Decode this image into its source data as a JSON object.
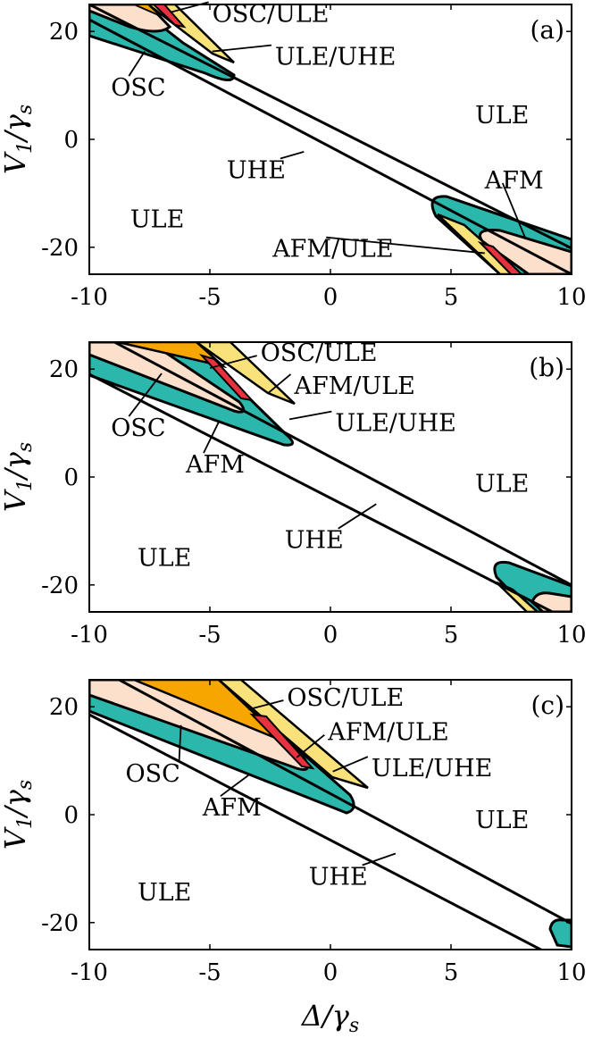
{
  "colors": {
    "ULE": "#ffffff",
    "UHE": "#ffffff",
    "AFM": "#2cb7ad",
    "OSC": "#fde0cc",
    "OSC/ULE": "#f7a600",
    "AFM/ULE": "#f9e27a",
    "ULE/UHE": "#e8313f",
    "outline": "#000000"
  },
  "chart_data": [
    {
      "type": "heatmap",
      "panel": "(a)",
      "xlabel": "",
      "ylabel": "V_1/γ_s",
      "xlim": [
        -10,
        10
      ],
      "ylim": [
        -25,
        25
      ],
      "xticks": [
        -10,
        -5,
        0,
        5,
        10
      ],
      "yticks": [
        -20,
        0,
        20
      ],
      "x_tick_labels": [
        "-10",
        "-5",
        "0",
        "5",
        "10"
      ],
      "y_tick_labels": [
        "-20",
        "0",
        "20"
      ],
      "regions": [
        "ULE",
        "UHE",
        "AFM",
        "OSC",
        "OSC/ULE",
        "AFM/ULE",
        "ULE/UHE"
      ],
      "uhe_band": {
        "upper_line": [
          [
            -10,
            25
          ],
          [
            10,
            -20
          ]
        ],
        "lower_line": [
          [
            -10,
            22
          ],
          [
            10,
            -25
          ]
        ]
      },
      "annotations": [
        {
          "text": "OSC/ULE",
          "x": -4.9,
          "y": 21.8,
          "arrow_to": [
            -6.6,
            23.6
          ]
        },
        {
          "text": "ULE/UHE",
          "x": -2.3,
          "y": 13.8,
          "arrow_to": [
            -4.9,
            16.3
          ]
        },
        {
          "text": "OSC",
          "x": -9.1,
          "y": 8.1,
          "arrow_to": [
            -7.7,
            16.3
          ]
        },
        {
          "text": "UHE",
          "x": -4.3,
          "y": -7.2,
          "arrow_to": [
            -1.1,
            -2.3
          ]
        },
        {
          "text": "ULE",
          "x": -8.3,
          "y": -16.3,
          "arrow_to": null
        },
        {
          "text": "ULE",
          "x": 6.0,
          "y": 3.0,
          "arrow_to": null
        },
        {
          "text": "AFM",
          "x": 6.4,
          "y": -9.1,
          "arrow_to": [
            8.1,
            -18.5
          ]
        },
        {
          "text": "AFM/ULE",
          "x": -2.4,
          "y": -21.8,
          "arrow_to": [
            6.4,
            -21.1
          ]
        }
      ]
    },
    {
      "type": "heatmap",
      "panel": "(b)",
      "xlabel": "",
      "ylabel": "V_1/γ_s",
      "xlim": [
        -10,
        10
      ],
      "ylim": [
        -25,
        25
      ],
      "xticks": [
        -10,
        -5,
        0,
        5,
        10
      ],
      "yticks": [
        -20,
        0,
        20
      ],
      "x_tick_labels": [
        "-10",
        "-5",
        "0",
        "5",
        "10"
      ],
      "y_tick_labels": [
        "-20",
        "0",
        "20"
      ],
      "regions": [
        "ULE",
        "UHE",
        "AFM",
        "OSC",
        "OSC/ULE",
        "AFM/ULE",
        "ULE/UHE"
      ],
      "uhe_band": {
        "upper_line": [
          [
            -10,
            27
          ],
          [
            10,
            -19
          ]
        ],
        "lower_line": [
          [
            -10,
            19.5
          ],
          [
            10,
            -26
          ]
        ]
      },
      "annotations": [
        {
          "text": "OSC/ULE",
          "x": -2.9,
          "y": 21.5,
          "arrow_to": [
            -5.0,
            20.2
          ]
        },
        {
          "text": "AFM/ULE",
          "x": -1.5,
          "y": 15.4,
          "arrow_to": [
            -2.6,
            15.5
          ]
        },
        {
          "text": "ULE/UHE",
          "x": 0.2,
          "y": 8.5,
          "arrow_to": [
            -1.7,
            10.7
          ]
        },
        {
          "text": "OSC",
          "x": -9.1,
          "y": 7.6,
          "arrow_to": [
            -7.0,
            19.2
          ]
        },
        {
          "text": "AFM",
          "x": -6.0,
          "y": 0.8,
          "arrow_to": [
            -4.6,
            10.5
          ]
        },
        {
          "text": "UHE",
          "x": -1.9,
          "y": -13.2,
          "arrow_to": [
            1.9,
            -5.0
          ]
        },
        {
          "text": "ULE",
          "x": -8.0,
          "y": -16.5,
          "arrow_to": null
        },
        {
          "text": "ULE",
          "x": 6.0,
          "y": -2.7,
          "arrow_to": null
        }
      ]
    },
    {
      "type": "heatmap",
      "panel": "(c)",
      "xlabel": "Δ/γ_s",
      "ylabel": "V_1/γ_s",
      "xlim": [
        -10,
        10
      ],
      "ylim": [
        -25,
        25
      ],
      "xticks": [
        -10,
        -5,
        0,
        5,
        10
      ],
      "yticks": [
        -20,
        0,
        20
      ],
      "x_tick_labels": [
        "-10",
        "-5",
        "0",
        "5",
        "10"
      ],
      "y_tick_labels": [
        "-20",
        "0",
        "20"
      ],
      "regions": [
        "ULE",
        "UHE",
        "AFM",
        "OSC",
        "OSC/ULE",
        "AFM/ULE",
        "ULE/UHE"
      ],
      "uhe_band": {
        "upper_line": [
          [
            -10,
            30
          ],
          [
            10,
            -19
          ]
        ],
        "lower_line": [
          [
            -10,
            19
          ],
          [
            10,
            -29
          ]
        ]
      },
      "annotations": [
        {
          "text": "OSC/ULE",
          "x": -1.8,
          "y": 20.2,
          "arrow_to": [
            -3.4,
            19.5
          ]
        },
        {
          "text": "AFM/ULE",
          "x": -0.1,
          "y": 13.8,
          "arrow_to": [
            -1.4,
            10.6
          ]
        },
        {
          "text": "ULE/UHE",
          "x": 1.7,
          "y": 7.1,
          "arrow_to": [
            0.1,
            8.0
          ]
        },
        {
          "text": "OSC",
          "x": -8.5,
          "y": 6.1,
          "arrow_to": [
            -6.2,
            16.6
          ]
        },
        {
          "text": "AFM",
          "x": -5.3,
          "y": -0.2,
          "arrow_to": [
            -3.4,
            7.3
          ]
        },
        {
          "text": "UHE",
          "x": -0.9,
          "y": -13.0,
          "arrow_to": [
            2.7,
            -7.2
          ]
        },
        {
          "text": "ULE",
          "x": -8.0,
          "y": -15.9,
          "arrow_to": null
        },
        {
          "text": "ULE",
          "x": 6.0,
          "y": -2.5,
          "arrow_to": null
        }
      ]
    }
  ]
}
